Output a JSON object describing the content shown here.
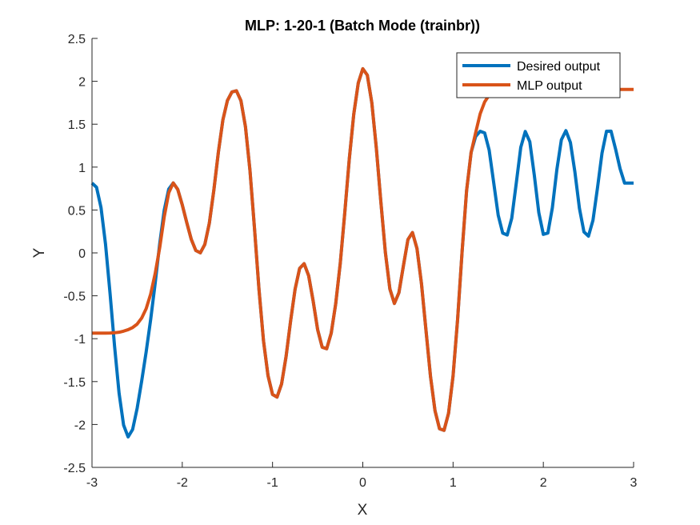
{
  "chart_data": {
    "type": "line",
    "title": "MLP: 1-20-1 (Batch Mode (trainbr))",
    "xlabel": "X",
    "ylabel": "Y",
    "xlim": [
      -3,
      3
    ],
    "ylim": [
      -2.5,
      2.5
    ],
    "xticks": [
      -3,
      -2,
      -1,
      0,
      1,
      2,
      3
    ],
    "yticks": [
      -2.5,
      -2,
      -1.5,
      -1,
      -0.5,
      0,
      0.5,
      1,
      1.5,
      2,
      2.5
    ],
    "xtick_labels": [
      "-3",
      "-2",
      "-1",
      "0",
      "1",
      "2",
      "3"
    ],
    "ytick_labels": [
      "-2.5",
      "-2",
      "-1.5",
      "-1",
      "-0.5",
      "0",
      "0.5",
      "1",
      "1.5",
      "2",
      "2.5"
    ],
    "grid": false,
    "legend_position": "top-right",
    "series": [
      {
        "name": "Desired output",
        "color": "#0072BD",
        "x": [
          -3.0,
          -2.95,
          -2.9,
          -2.85,
          -2.8,
          -2.75,
          -2.7,
          -2.65,
          -2.6,
          -2.55,
          -2.5,
          -2.45,
          -2.4,
          -2.35,
          -2.3,
          -2.25,
          -2.2,
          -2.15,
          -2.1,
          -2.05,
          -2.0,
          -1.95,
          -1.9,
          -1.85,
          -1.8,
          -1.75,
          -1.7,
          -1.65,
          -1.6,
          -1.55,
          -1.5,
          -1.45,
          -1.4,
          -1.35,
          -1.3,
          -1.25,
          -1.2,
          -1.15,
          -1.1,
          -1.05,
          -1.0,
          -0.95,
          -0.9,
          -0.85,
          -0.8,
          -0.75,
          -0.7,
          -0.65,
          -0.6,
          -0.55,
          -0.5,
          -0.45,
          -0.4,
          -0.35,
          -0.3,
          -0.25,
          -0.2,
          -0.15,
          -0.1,
          -0.05,
          0.0,
          0.05,
          0.1,
          0.15,
          0.2,
          0.25,
          0.3,
          0.35,
          0.4,
          0.45,
          0.5,
          0.55,
          0.6,
          0.65,
          0.7,
          0.75,
          0.8,
          0.85,
          0.9,
          0.95,
          1.0,
          1.05,
          1.1,
          1.15,
          1.2,
          1.25,
          1.3,
          1.35,
          1.4,
          1.45,
          1.5,
          1.55,
          1.6,
          1.65,
          1.7,
          1.75,
          1.8,
          1.85,
          1.9,
          1.95,
          2.0,
          2.05,
          2.1,
          2.15,
          2.2,
          2.25,
          2.3,
          2.35,
          2.4,
          2.45,
          2.5,
          2.55,
          2.6,
          2.65,
          2.7,
          2.75,
          2.8,
          2.85,
          2.9,
          2.95,
          3.0
        ],
        "y": [
          0.814,
          0.765,
          0.528,
          0.1,
          -0.473,
          -1.088,
          -1.635,
          -2.007,
          -2.145,
          -2.058,
          -1.812,
          -1.496,
          -1.154,
          -0.776,
          -0.353,
          0.106,
          0.498,
          0.743,
          0.815,
          0.74,
          0.56,
          0.352,
          0.157,
          0.028,
          0.001,
          0.099,
          0.347,
          0.733,
          1.174,
          1.55,
          1.775,
          1.876,
          1.89,
          1.774,
          1.471,
          0.962,
          0.288,
          -0.425,
          -1.025,
          -1.431,
          -1.65,
          -1.68,
          -1.528,
          -1.208,
          -0.795,
          -0.422,
          -0.181,
          -0.126,
          -0.265,
          -0.561,
          -0.896,
          -1.099,
          -1.117,
          -0.936,
          -0.592,
          -0.124,
          0.464,
          1.091,
          1.618,
          1.981,
          2.146,
          2.072,
          1.749,
          1.22,
          0.596,
          0.006,
          -0.421,
          -0.589,
          -0.464,
          -0.15,
          0.156,
          0.237,
          0.052,
          -0.358,
          -0.902,
          -1.44,
          -1.84,
          -2.05,
          -2.068,
          -1.869,
          -1.434,
          -0.78,
          0.015,
          0.728,
          1.171,
          1.356,
          1.418,
          1.398,
          1.197,
          0.82,
          0.44,
          0.231,
          0.209,
          0.404,
          0.812,
          1.23,
          1.415,
          1.296,
          0.906,
          0.468,
          0.216,
          0.231,
          0.526,
          0.972,
          1.319,
          1.425,
          1.287,
          0.94,
          0.519,
          0.245,
          0.195,
          0.38,
          0.758,
          1.163,
          1.418,
          1.419,
          1.212,
          0.983,
          0.814,
          0.814,
          0.814
        ]
      },
      {
        "name": "MLP output",
        "color": "#D95319",
        "x": [
          -3.0,
          -2.95,
          -2.9,
          -2.85,
          -2.8,
          -2.75,
          -2.7,
          -2.65,
          -2.6,
          -2.55,
          -2.5,
          -2.45,
          -2.4,
          -2.35,
          -2.3,
          -2.25,
          -2.2,
          -2.15,
          -2.1,
          -2.05,
          -2.0,
          -1.95,
          -1.9,
          -1.85,
          -1.8,
          -1.75,
          -1.7,
          -1.65,
          -1.6,
          -1.55,
          -1.5,
          -1.45,
          -1.4,
          -1.35,
          -1.3,
          -1.25,
          -1.2,
          -1.15,
          -1.1,
          -1.05,
          -1.0,
          -0.95,
          -0.9,
          -0.85,
          -0.8,
          -0.75,
          -0.7,
          -0.65,
          -0.6,
          -0.55,
          -0.5,
          -0.45,
          -0.4,
          -0.35,
          -0.3,
          -0.25,
          -0.2,
          -0.15,
          -0.1,
          -0.05,
          0.0,
          0.05,
          0.1,
          0.15,
          0.2,
          0.25,
          0.3,
          0.35,
          0.4,
          0.45,
          0.5,
          0.55,
          0.6,
          0.65,
          0.7,
          0.75,
          0.8,
          0.85,
          0.9,
          0.95,
          1.0,
          1.05,
          1.1,
          1.15,
          1.2,
          1.25,
          1.3,
          1.35,
          1.4,
          1.45,
          1.5,
          1.55,
          1.6,
          1.65,
          1.7,
          1.75,
          1.8,
          1.85,
          1.9,
          1.95,
          2.0,
          2.05,
          2.1,
          2.15,
          2.2,
          2.25,
          2.3,
          2.35,
          2.4,
          2.45,
          2.5,
          2.55,
          2.6,
          2.65,
          2.7,
          2.75,
          2.8,
          2.85,
          2.9,
          2.95,
          3.0
        ],
        "y": [
          -0.935,
          -0.935,
          -0.935,
          -0.935,
          -0.934,
          -0.931,
          -0.925,
          -0.912,
          -0.895,
          -0.87,
          -0.83,
          -0.76,
          -0.65,
          -0.48,
          -0.24,
          0.06,
          0.42,
          0.7,
          0.815,
          0.74,
          0.56,
          0.352,
          0.157,
          0.028,
          0.001,
          0.099,
          0.347,
          0.733,
          1.174,
          1.55,
          1.775,
          1.876,
          1.89,
          1.774,
          1.471,
          0.962,
          0.288,
          -0.425,
          -1.025,
          -1.431,
          -1.65,
          -1.68,
          -1.528,
          -1.208,
          -0.795,
          -0.422,
          -0.181,
          -0.126,
          -0.265,
          -0.561,
          -0.896,
          -1.099,
          -1.117,
          -0.936,
          -0.592,
          -0.124,
          0.464,
          1.091,
          1.618,
          1.981,
          2.146,
          2.072,
          1.749,
          1.22,
          0.596,
          0.006,
          -0.421,
          -0.589,
          -0.464,
          -0.15,
          0.156,
          0.237,
          0.052,
          -0.358,
          -0.902,
          -1.44,
          -1.84,
          -2.05,
          -2.068,
          -1.869,
          -1.434,
          -0.78,
          0.015,
          0.728,
          1.171,
          1.4,
          1.62,
          1.76,
          1.84,
          1.88,
          1.9,
          1.905,
          1.905,
          1.905,
          1.905,
          1.905,
          1.905,
          1.905,
          1.905,
          1.905,
          1.905,
          1.905,
          1.905,
          1.905,
          1.905,
          1.905,
          1.905,
          1.905,
          1.905,
          1.905,
          1.905,
          1.905,
          1.905,
          1.905,
          1.905,
          1.905,
          1.905,
          1.905,
          1.905,
          1.905,
          1.905
        ]
      }
    ]
  }
}
